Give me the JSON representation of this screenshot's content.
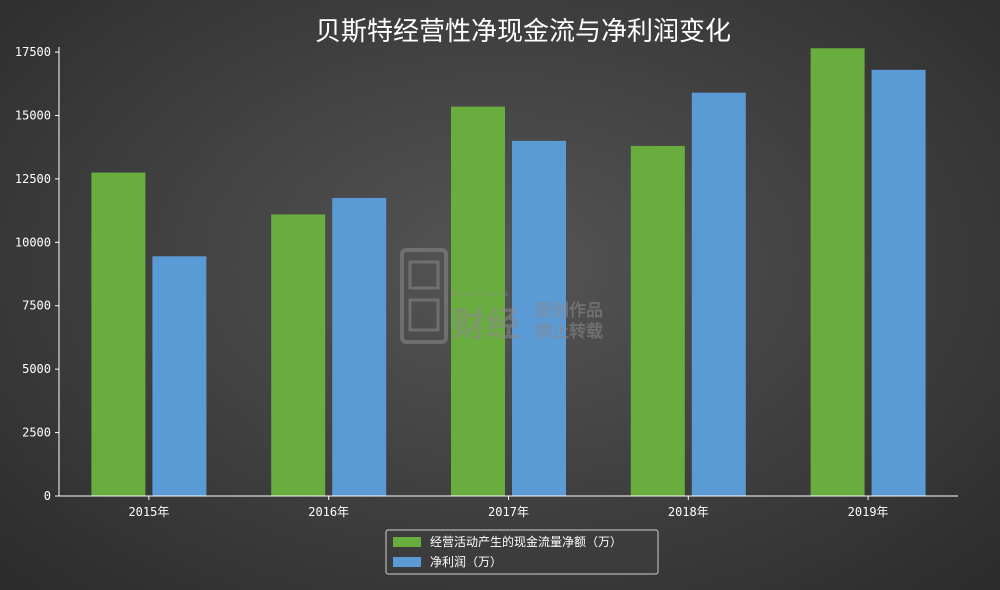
{
  "chart_data": {
    "type": "bar",
    "title": "贝斯特经营性净现金流与净利润变化",
    "categories": [
      "2015年",
      "2016年",
      "2017年",
      "2018年",
      "2019年"
    ],
    "series": [
      {
        "name": "经营活动产生的现金流量净额（万）",
        "values": [
          12750,
          11100,
          15350,
          13800,
          17650
        ]
      },
      {
        "name": "净利润（万）",
        "values": [
          9450,
          11750,
          14000,
          15900,
          16800
        ]
      }
    ],
    "ylim": [
      0,
      17700
    ],
    "yticks": [
      0,
      2500,
      5000,
      7500,
      10000,
      12500,
      15000,
      17500
    ],
    "legend": "bottom-center",
    "grid": false
  },
  "colors": {
    "series": [
      "#6aad3f",
      "#5b9bd5"
    ],
    "axis": "#ffffff",
    "text": "#ffffff"
  },
  "watermark": {
    "brand": "财经",
    "tagline": "Broad Finance",
    "line1": "原创作品",
    "line2": "禁止转载"
  }
}
